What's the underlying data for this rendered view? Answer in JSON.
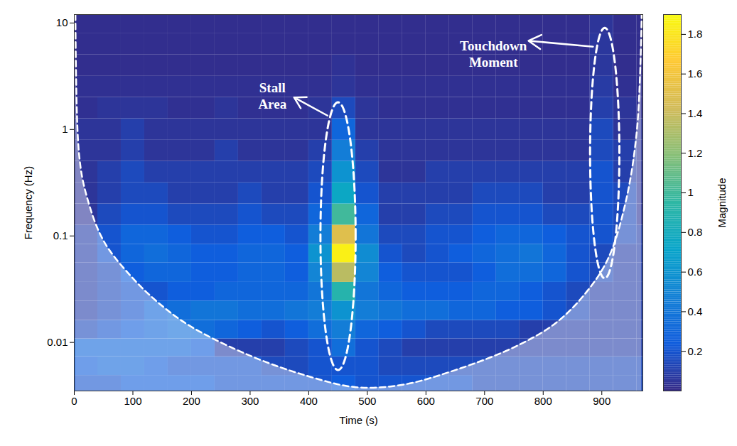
{
  "chart_data": {
    "type": "heatmap",
    "xlabel": "Time (s)",
    "ylabel": "Frequency (Hz)",
    "log": "y",
    "xlim": [
      0,
      970
    ],
    "xticks": [
      0,
      100,
      200,
      300,
      400,
      500,
      600,
      700,
      800,
      900
    ],
    "ylim": [
      0.0035,
      12
    ],
    "yticks": [
      0.01,
      0.1,
      1,
      10
    ],
    "x": [
      20,
      60,
      100,
      140,
      180,
      220,
      260,
      300,
      340,
      380,
      420,
      460,
      500,
      540,
      580,
      620,
      660,
      700,
      740,
      780,
      820,
      860,
      900,
      940,
      980
    ],
    "y": [
      0.004,
      0.006,
      0.009,
      0.013,
      0.02,
      0.03,
      0.045,
      0.07,
      0.1,
      0.16,
      0.25,
      0.4,
      0.63,
      1,
      1.6,
      2.5,
      4,
      6.3,
      10
    ],
    "values": [
      [
        0.2,
        0.2,
        0.25,
        0.25,
        0.25,
        0.25,
        0.2,
        0.2,
        0.2,
        0.2,
        0.2,
        0.25,
        0.2,
        0.2,
        0.2,
        0.2,
        0.2,
        0.15,
        0.15,
        0.15,
        0.15,
        0.15,
        0.15,
        0.15,
        0.15
      ],
      [
        0.25,
        0.3,
        0.3,
        0.25,
        0.2,
        0.2,
        0.2,
        0.2,
        0.15,
        0.15,
        0.2,
        0.2,
        0.2,
        0.15,
        0.15,
        0.15,
        0.15,
        0.15,
        0.15,
        0.15,
        0.15,
        0.15,
        0.15,
        0.15,
        0.15
      ],
      [
        0.3,
        0.3,
        0.3,
        0.3,
        0.3,
        0.25,
        0.1,
        0.1,
        0.1,
        0.15,
        0.2,
        0.35,
        0.2,
        0.15,
        0.1,
        0.1,
        0.1,
        0.1,
        0.1,
        0.1,
        0.1,
        0.1,
        0.1,
        0.1,
        0.1
      ],
      [
        0.15,
        0.2,
        0.25,
        0.3,
        0.35,
        0.35,
        0.3,
        0.25,
        0.2,
        0.25,
        0.35,
        0.45,
        0.3,
        0.25,
        0.2,
        0.15,
        0.15,
        0.15,
        0.15,
        0.1,
        0.1,
        0.1,
        0.1,
        0.1,
        0.1
      ],
      [
        0.1,
        0.15,
        0.2,
        0.3,
        0.35,
        0.4,
        0.4,
        0.35,
        0.35,
        0.4,
        0.45,
        0.6,
        0.45,
        0.4,
        0.35,
        0.35,
        0.3,
        0.3,
        0.25,
        0.25,
        0.2,
        0.15,
        0.1,
        0.1,
        0.1
      ],
      [
        0.1,
        0.15,
        0.2,
        0.2,
        0.25,
        0.25,
        0.3,
        0.3,
        0.3,
        0.3,
        0.4,
        0.9,
        0.4,
        0.3,
        0.25,
        0.25,
        0.25,
        0.3,
        0.3,
        0.25,
        0.2,
        0.15,
        0.1,
        0.1,
        0.1
      ],
      [
        0.1,
        0.15,
        0.25,
        0.3,
        0.3,
        0.25,
        0.25,
        0.3,
        0.3,
        0.25,
        0.5,
        1.35,
        0.5,
        0.25,
        0.2,
        0.2,
        0.2,
        0.25,
        0.35,
        0.35,
        0.3,
        0.2,
        0.15,
        0.1,
        0.1
      ],
      [
        0.1,
        0.2,
        0.3,
        0.35,
        0.3,
        0.25,
        0.25,
        0.3,
        0.3,
        0.25,
        0.6,
        1.85,
        0.55,
        0.2,
        0.15,
        0.2,
        0.25,
        0.3,
        0.35,
        0.4,
        0.3,
        0.2,
        0.15,
        0.1,
        0.1
      ],
      [
        0.1,
        0.2,
        0.3,
        0.3,
        0.25,
        0.2,
        0.2,
        0.25,
        0.25,
        0.2,
        0.45,
        1.5,
        0.4,
        0.15,
        0.15,
        0.2,
        0.2,
        0.25,
        0.3,
        0.3,
        0.25,
        0.2,
        0.2,
        0.15,
        0.1
      ],
      [
        0.05,
        0.15,
        0.2,
        0.2,
        0.15,
        0.15,
        0.15,
        0.2,
        0.15,
        0.15,
        0.3,
        1.0,
        0.3,
        0.1,
        0.1,
        0.15,
        0.15,
        0.2,
        0.2,
        0.2,
        0.15,
        0.15,
        0.2,
        0.15,
        0.05
      ],
      [
        0.05,
        0.1,
        0.15,
        0.15,
        0.1,
        0.1,
        0.1,
        0.15,
        0.1,
        0.1,
        0.2,
        0.75,
        0.2,
        0.1,
        0.1,
        0.1,
        0.1,
        0.15,
        0.15,
        0.15,
        0.1,
        0.1,
        0.2,
        0.15,
        0.05
      ],
      [
        0.05,
        0.1,
        0.15,
        0.1,
        0.1,
        0.1,
        0.1,
        0.1,
        0.1,
        0.1,
        0.15,
        0.6,
        0.15,
        0.05,
        0.05,
        0.1,
        0.1,
        0.1,
        0.1,
        0.1,
        0.1,
        0.1,
        0.2,
        0.1,
        0.05
      ],
      [
        0.05,
        0.05,
        0.1,
        0.05,
        0.05,
        0.05,
        0.1,
        0.05,
        0.05,
        0.05,
        0.1,
        0.45,
        0.1,
        0.05,
        0.05,
        0.05,
        0.05,
        0.05,
        0.05,
        0.05,
        0.05,
        0.05,
        0.15,
        0.1,
        0.05
      ],
      [
        0.05,
        0.05,
        0.1,
        0.05,
        0.05,
        0.05,
        0.05,
        0.05,
        0.05,
        0.05,
        0.05,
        0.3,
        0.05,
        0.05,
        0.05,
        0.05,
        0.05,
        0.05,
        0.05,
        0.05,
        0.05,
        0.05,
        0.15,
        0.05,
        0.05
      ],
      [
        0.03,
        0.05,
        0.05,
        0.05,
        0.03,
        0.03,
        0.05,
        0.03,
        0.03,
        0.03,
        0.05,
        0.15,
        0.05,
        0.03,
        0.03,
        0.03,
        0.03,
        0.03,
        0.03,
        0.03,
        0.03,
        0.03,
        0.1,
        0.05,
        0.03
      ],
      [
        0.03,
        0.03,
        0.03,
        0.03,
        0.03,
        0.03,
        0.03,
        0.03,
        0.03,
        0.03,
        0.03,
        0.05,
        0.03,
        0.03,
        0.03,
        0.03,
        0.03,
        0.03,
        0.03,
        0.03,
        0.03,
        0.03,
        0.08,
        0.03,
        0.03
      ],
      [
        0.02,
        0.02,
        0.02,
        0.02,
        0.02,
        0.02,
        0.02,
        0.02,
        0.02,
        0.02,
        0.02,
        0.04,
        0.02,
        0.02,
        0.02,
        0.02,
        0.02,
        0.02,
        0.02,
        0.02,
        0.02,
        0.02,
        0.06,
        0.02,
        0.02
      ],
      [
        0.02,
        0.02,
        0.02,
        0.02,
        0.02,
        0.02,
        0.02,
        0.02,
        0.02,
        0.02,
        0.02,
        0.02,
        0.02,
        0.02,
        0.02,
        0.02,
        0.02,
        0.02,
        0.02,
        0.02,
        0.02,
        0.02,
        0.06,
        0.02,
        0.02
      ],
      [
        0.02,
        0.02,
        0.02,
        0.02,
        0.02,
        0.02,
        0.02,
        0.02,
        0.02,
        0.02,
        0.02,
        0.02,
        0.02,
        0.02,
        0.02,
        0.02,
        0.02,
        0.02,
        0.02,
        0.02,
        0.02,
        0.02,
        0.05,
        0.02,
        0.02
      ]
    ],
    "colorbar": {
      "label": "Magnitude",
      "lim": [
        0,
        1.9
      ],
      "ticks": [
        0.2,
        0.4,
        0.6,
        0.8,
        1,
        1.2,
        1.4,
        1.6,
        1.8
      ]
    },
    "cone_of_influence": {
      "x": [
        2,
        8,
        20,
        50,
        100,
        150,
        200,
        300,
        400,
        480,
        560,
        650,
        750,
        820,
        870,
        910,
        940,
        960,
        968
      ],
      "values": [
        12,
        0.6,
        0.25,
        0.09,
        0.04,
        0.022,
        0.014,
        0.0075,
        0.0048,
        0.0038,
        0.004,
        0.0055,
        0.009,
        0.015,
        0.028,
        0.06,
        0.2,
        1,
        12
      ]
    },
    "annotations": [
      {
        "text": "Stall Area"
      },
      {
        "text": "Touchdown Moment"
      }
    ]
  }
}
